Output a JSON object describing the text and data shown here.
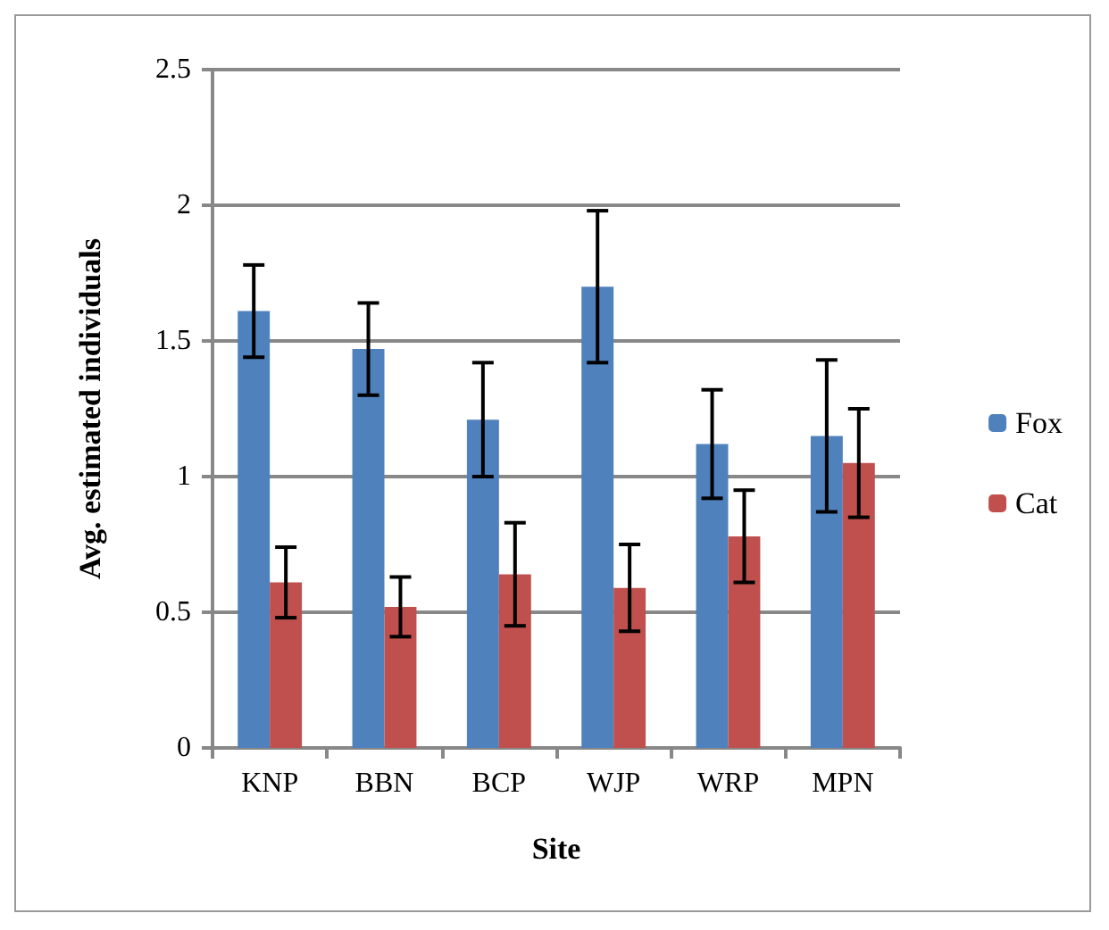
{
  "chart_data": {
    "type": "bar",
    "xlabel": "Site",
    "ylabel": "Avg. estimated individuals",
    "categories": [
      "KNP",
      "BBN",
      "BCP",
      "WJP",
      "WRP",
      "MPN"
    ],
    "series": [
      {
        "name": "Fox",
        "color": "#4f81bd",
        "values": [
          1.61,
          1.47,
          1.21,
          1.7,
          1.12,
          1.15
        ],
        "errors": [
          0.17,
          0.17,
          0.21,
          0.28,
          0.2,
          0.28
        ]
      },
      {
        "name": "Cat",
        "color": "#c0504d",
        "values": [
          0.61,
          0.52,
          0.64,
          0.59,
          0.78,
          1.05
        ],
        "errors": [
          0.13,
          0.11,
          0.19,
          0.16,
          0.17,
          0.2
        ]
      }
    ],
    "ylim": [
      0,
      2.5
    ],
    "yticks": [
      0,
      0.5,
      1,
      1.5,
      2,
      2.5
    ],
    "grid": "y",
    "legend": "right"
  }
}
